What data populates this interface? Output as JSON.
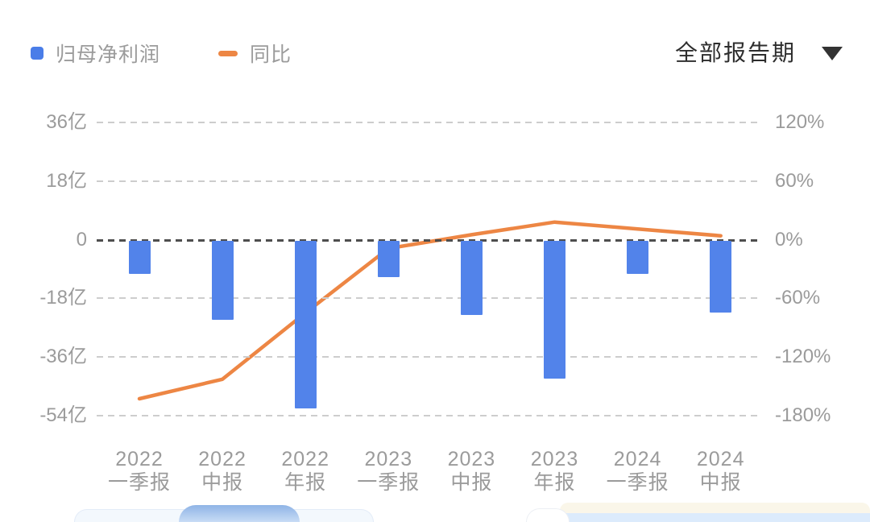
{
  "legend": {
    "series1": {
      "label": "归母净利润",
      "marker": "square-icon",
      "color": "#4a7de8"
    },
    "series2": {
      "label": "同比",
      "marker": "dash-icon",
      "color": "#ed8644"
    }
  },
  "period_filter": {
    "label": "全部报告期",
    "icon": "caret-down-icon"
  },
  "chart_data": {
    "type": "bar",
    "subtype": "bar+line combo, dual y-axis",
    "title": "",
    "categories": [
      {
        "year": "2022",
        "period": "一季报"
      },
      {
        "year": "2022",
        "period": "中报"
      },
      {
        "year": "2022",
        "period": "年报"
      },
      {
        "year": "2023",
        "period": "一季报"
      },
      {
        "year": "2023",
        "period": "中报"
      },
      {
        "year": "2023",
        "period": "年报"
      },
      {
        "year": "2024",
        "period": "一季报"
      },
      {
        "year": "2024",
        "period": "中报"
      }
    ],
    "series": [
      {
        "name": "归母净利润",
        "type": "bar",
        "axis": "left",
        "unit": "亿",
        "color": "#5283ea",
        "values": [
          -10.1,
          -24.2,
          -51.4,
          -11.1,
          -22.7,
          -42.3,
          -10.1,
          -22.0
        ]
      },
      {
        "name": "同比",
        "type": "line",
        "axis": "right",
        "unit": "%",
        "color": "#ed8644",
        "values": [
          -163,
          -143,
          -75,
          -9,
          5,
          18,
          11,
          4
        ]
      }
    ],
    "left_axis": {
      "unit": "亿",
      "tick_labels": [
        "36亿",
        "18亿",
        "0",
        "-18亿",
        "-36亿",
        "-54亿"
      ],
      "tick_values": [
        36,
        18,
        0,
        -18,
        -36,
        -54
      ],
      "range": [
        -54,
        36
      ]
    },
    "right_axis": {
      "unit": "%",
      "tick_labels": [
        "120%",
        "60%",
        "0%",
        "-60%",
        "-120%",
        "-180%"
      ],
      "tick_values": [
        120,
        60,
        0,
        -60,
        -120,
        -180
      ],
      "range": [
        -180,
        120
      ]
    },
    "grid": "horizontal dashed, zero line darker",
    "legend_position": "top-left",
    "background": "#ffffff"
  }
}
